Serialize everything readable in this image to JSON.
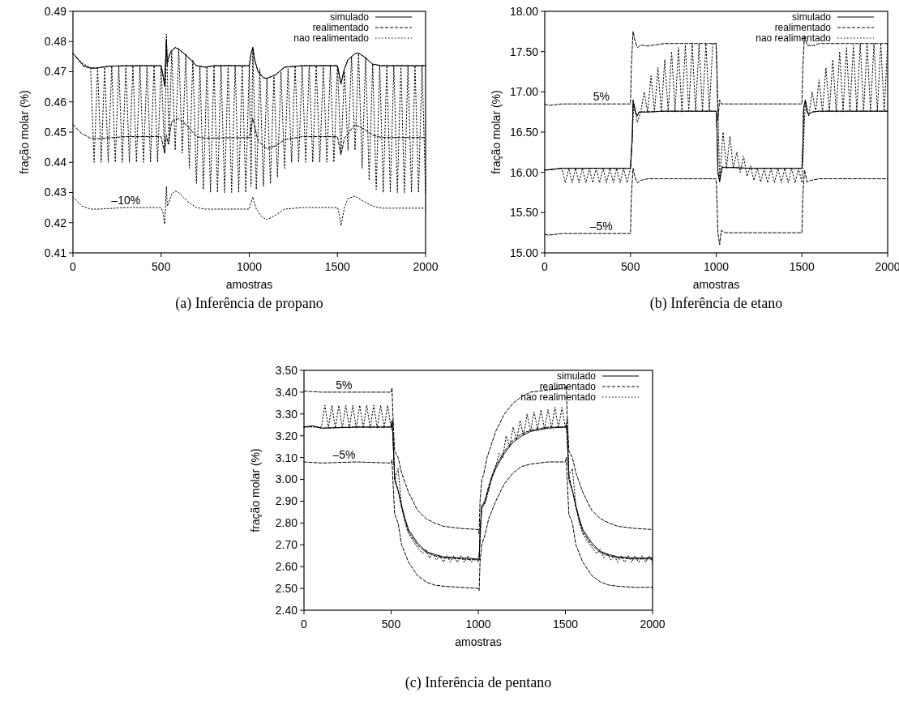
{
  "chart_data": [
    {
      "type": "line",
      "title": "(a) Inferência de propano",
      "xlabel": "amostras",
      "ylabel": "fração molar (%)",
      "xlim": [
        0,
        2000
      ],
      "xticks": [
        0,
        500,
        1000,
        1500,
        2000
      ],
      "ylim": [
        0.41,
        0.49
      ],
      "yticks": [
        0.41,
        0.42,
        0.43,
        0.44,
        0.45,
        0.46,
        0.47,
        0.48,
        0.49
      ],
      "legend": "top right",
      "grid": false,
      "annotations": [
        {
          "text": "–10%",
          "x": 300,
          "y": 0.425
        }
      ],
      "series": [
        {
          "name": "simulado",
          "color": "#000000",
          "line_style": "solid",
          "x": [
            0,
            10,
            30,
            60,
            100,
            130,
            200,
            300,
            400,
            500,
            510,
            520,
            530,
            535,
            540,
            550,
            560,
            580,
            600,
            650,
            700,
            750,
            800,
            900,
            1000,
            1010,
            1020,
            1030,
            1050,
            1080,
            1100,
            1150,
            1200,
            1300,
            1400,
            1500,
            1510,
            1520,
            1540,
            1560,
            1600,
            1620,
            1650,
            1700,
            1750,
            1800,
            1900,
            2000
          ],
          "values": [
            0.476,
            0.4755,
            0.474,
            0.472,
            0.4712,
            0.4712,
            0.4718,
            0.472,
            0.472,
            0.472,
            0.469,
            0.466,
            0.48,
            0.473,
            0.474,
            0.476,
            0.477,
            0.478,
            0.4775,
            0.475,
            0.472,
            0.4715,
            0.472,
            0.472,
            0.472,
            0.476,
            0.478,
            0.474,
            0.47,
            0.468,
            0.4678,
            0.469,
            0.4715,
            0.472,
            0.472,
            0.472,
            0.469,
            0.466,
            0.471,
            0.474,
            0.476,
            0.4762,
            0.475,
            0.4725,
            0.472,
            0.472,
            0.472,
            0.472
          ]
        },
        {
          "name": "realimentado",
          "color": "#000000",
          "line_style": "dashed",
          "x": [
            0,
            10,
            30,
            60,
            100,
            130,
            200,
            300,
            400,
            500,
            510,
            520,
            530,
            535,
            540,
            550,
            560,
            580,
            600,
            650,
            700,
            750,
            800,
            900,
            1000,
            1010,
            1020,
            1030,
            1050,
            1080,
            1100,
            1150,
            1200,
            1300,
            1400,
            1500,
            1510,
            1520,
            1540,
            1560,
            1600,
            1620,
            1650,
            1700,
            1750,
            1800,
            1900,
            2000
          ],
          "values": [
            0.476,
            0.4755,
            0.474,
            0.4718,
            0.4712,
            0.4712,
            0.4718,
            0.472,
            0.472,
            0.472,
            0.469,
            0.465,
            0.481,
            0.472,
            0.474,
            0.476,
            0.477,
            0.478,
            0.4775,
            0.475,
            0.472,
            0.4715,
            0.472,
            0.472,
            0.472,
            0.476,
            0.478,
            0.474,
            0.47,
            0.468,
            0.4678,
            0.469,
            0.4715,
            0.472,
            0.472,
            0.472,
            0.469,
            0.466,
            0.471,
            0.474,
            0.476,
            0.4762,
            0.475,
            0.4725,
            0.472,
            0.472,
            0.472,
            0.472
          ]
        },
        {
          "name": "nao realimentado",
          "color": "#000000",
          "line_style": "dotted",
          "x": [
            0,
            50,
            100,
            120,
            140,
            160,
            180,
            200,
            220,
            240,
            260,
            280,
            300,
            320,
            340,
            360,
            380,
            400,
            420,
            440,
            460,
            480,
            500,
            520,
            530,
            545,
            560,
            580,
            600,
            620,
            640,
            660,
            680,
            700,
            720,
            740,
            760,
            780,
            800,
            820,
            840,
            860,
            880,
            900,
            920,
            940,
            960,
            980,
            1000,
            1010,
            1020,
            1040,
            1060,
            1080,
            1100,
            1120,
            1140,
            1160,
            1180,
            1200,
            1220,
            1240,
            1260,
            1280,
            1300,
            1320,
            1340,
            1360,
            1380,
            1400,
            1420,
            1440,
            1460,
            1480,
            1500,
            1520,
            1540,
            1560,
            1580,
            1600,
            1620,
            1640,
            1660,
            1680,
            1700,
            1720,
            1740,
            1760,
            1780,
            1800,
            1820,
            1840,
            1860,
            1880,
            1900,
            1920,
            1940,
            1960,
            1980,
            2000
          ],
          "values": [
            0.476,
            0.473,
            0.4712,
            0.44,
            0.4712,
            0.44,
            0.4715,
            0.44,
            0.472,
            0.44,
            0.472,
            0.44,
            0.472,
            0.44,
            0.472,
            0.44,
            0.472,
            0.44,
            0.472,
            0.44,
            0.472,
            0.44,
            0.472,
            0.443,
            0.4825,
            0.446,
            0.477,
            0.444,
            0.4775,
            0.443,
            0.476,
            0.438,
            0.474,
            0.433,
            0.472,
            0.431,
            0.4718,
            0.43,
            0.472,
            0.43,
            0.472,
            0.43,
            0.472,
            0.43,
            0.472,
            0.43,
            0.472,
            0.43,
            0.472,
            0.432,
            0.478,
            0.431,
            0.471,
            0.432,
            0.468,
            0.433,
            0.4685,
            0.435,
            0.47,
            0.438,
            0.471,
            0.44,
            0.472,
            0.44,
            0.472,
            0.44,
            0.472,
            0.44,
            0.472,
            0.44,
            0.472,
            0.44,
            0.472,
            0.44,
            0.472,
            0.443,
            0.47,
            0.444,
            0.475,
            0.444,
            0.476,
            0.438,
            0.475,
            0.434,
            0.4725,
            0.431,
            0.472,
            0.43,
            0.472,
            0.43,
            0.472,
            0.43,
            0.472,
            0.43,
            0.472,
            0.43,
            0.472,
            0.43,
            0.472,
            0.43
          ]
        },
        {
          "color": "#000000",
          "line_style": "dashed",
          "x": [
            0,
            50,
            100,
            130,
            300,
            500,
            520,
            530,
            540,
            560,
            600,
            650,
            700,
            750,
            1000,
            1020,
            1050,
            1100,
            1150,
            1200,
            1300,
            1500,
            1520,
            1540,
            1600,
            1650,
            1700,
            1750,
            2000
          ],
          "values": [
            0.4525,
            0.4495,
            0.448,
            0.4478,
            0.4485,
            0.4485,
            0.443,
            0.449,
            0.446,
            0.4535,
            0.4545,
            0.452,
            0.4485,
            0.448,
            0.4482,
            0.4545,
            0.447,
            0.4445,
            0.4455,
            0.4475,
            0.4485,
            0.4485,
            0.4425,
            0.448,
            0.4525,
            0.451,
            0.449,
            0.4482,
            0.4482
          ]
        },
        {
          "color": "#000000",
          "line_style": "dotted",
          "x": [
            0,
            50,
            100,
            150,
            300,
            500,
            510,
            520,
            530,
            535,
            540,
            560,
            580,
            600,
            650,
            700,
            750,
            1000,
            1020,
            1040,
            1070,
            1100,
            1150,
            1200,
            1300,
            1500,
            1510,
            1520,
            1540,
            1560,
            1600,
            1650,
            1700,
            1750,
            2000
          ],
          "values": [
            0.4285,
            0.4255,
            0.4245,
            0.4245,
            0.425,
            0.425,
            0.4235,
            0.4195,
            0.432,
            0.4255,
            0.426,
            0.4295,
            0.4305,
            0.43,
            0.427,
            0.425,
            0.4245,
            0.4245,
            0.4285,
            0.4245,
            0.422,
            0.421,
            0.4225,
            0.4245,
            0.425,
            0.425,
            0.423,
            0.419,
            0.425,
            0.428,
            0.4288,
            0.427,
            0.4255,
            0.4248,
            0.4248
          ]
        }
      ]
    },
    {
      "type": "line",
      "title": "(b) Inferência de etano",
      "xlabel": "amostras",
      "ylabel": "fração molar (%)",
      "xlim": [
        0,
        2000
      ],
      "xticks": [
        0,
        500,
        1000,
        1500,
        2000
      ],
      "ylim": [
        15,
        18
      ],
      "yticks": [
        {
          "value": 15,
          "label": "15.00"
        },
        {
          "value": 15.5,
          "label": "15.50"
        },
        {
          "value": 16,
          "label": "16.00"
        },
        {
          "value": 16.5,
          "label": "16.50"
        },
        {
          "value": 17,
          "label": "17.00"
        },
        {
          "value": 17.5,
          "label": "17.50"
        },
        {
          "value": 18,
          "label": "18.00"
        }
      ],
      "legend": "top right",
      "grid": false,
      "annotations": [
        {
          "text": "5%",
          "x": 330,
          "y": 16.85
        },
        {
          "text": "–5%",
          "x": 330,
          "y": 15.24
        }
      ],
      "series": [
        {
          "name": "simulado",
          "color": "#000000",
          "line_style": "solid",
          "x": [
            0,
            20,
            100,
            300,
            500,
            510,
            515,
            520,
            530,
            540,
            550,
            560,
            600,
            700,
            1000,
            1005,
            1010,
            1020,
            1025,
            1035,
            1050,
            1100,
            1200,
            1500,
            1505,
            1510,
            1520,
            1530,
            1540,
            1560,
            1600,
            2000
          ],
          "values": [
            16.03,
            16.03,
            16.05,
            16.05,
            16.05,
            16.4,
            16.9,
            16.85,
            16.75,
            16.7,
            16.75,
            16.75,
            16.75,
            16.76,
            16.76,
            16.5,
            16,
            15.88,
            15.95,
            16.07,
            16.06,
            16.06,
            16.05,
            16.05,
            16.3,
            16.8,
            16.9,
            16.75,
            16.72,
            16.75,
            16.76,
            16.76
          ]
        },
        {
          "name": "realimentado",
          "color": "#000000",
          "line_style": "dashed",
          "x": [
            0,
            20,
            100,
            300,
            500,
            510,
            515,
            520,
            530,
            540,
            550,
            560,
            600,
            700,
            1000,
            1005,
            1010,
            1020,
            1025,
            1035,
            1050,
            1100,
            1200,
            1500,
            1505,
            1510,
            1520,
            1530,
            1540,
            1560,
            1600,
            2000
          ],
          "values": [
            16.03,
            16.03,
            16.05,
            16.05,
            16.05,
            16.4,
            16.85,
            16.82,
            16.73,
            16.7,
            16.75,
            16.75,
            16.75,
            16.76,
            16.76,
            16.5,
            16,
            15.9,
            15.95,
            16.06,
            16.06,
            16.06,
            16.05,
            16.05,
            16.3,
            16.8,
            16.88,
            16.74,
            16.72,
            16.75,
            16.76,
            16.76
          ]
        },
        {
          "name": "nao realimentado",
          "color": "#000000",
          "line_style": "dotted",
          "x": [
            0,
            100,
            120,
            140,
            160,
            180,
            200,
            220,
            240,
            260,
            280,
            300,
            320,
            340,
            360,
            380,
            400,
            420,
            440,
            460,
            480,
            500,
            520,
            540,
            560,
            580,
            600,
            620,
            640,
            660,
            680,
            700,
            720,
            740,
            760,
            780,
            800,
            820,
            840,
            860,
            880,
            900,
            920,
            940,
            960,
            980,
            1000,
            1010,
            1020,
            1040,
            1060,
            1080,
            1100,
            1120,
            1140,
            1160,
            1180,
            1200,
            1220,
            1240,
            1260,
            1280,
            1300,
            1320,
            1340,
            1360,
            1380,
            1400,
            1420,
            1440,
            1460,
            1480,
            1500,
            1520,
            1540,
            1560,
            1580,
            1600,
            1620,
            1640,
            1660,
            1680,
            1700,
            1720,
            1740,
            1760,
            1780,
            1800,
            1820,
            1840,
            1860,
            1880,
            1900,
            1920,
            1940,
            1960,
            1980,
            2000
          ],
          "values": [
            16.03,
            16.05,
            15.87,
            16.05,
            15.87,
            16.05,
            15.87,
            16.05,
            15.87,
            16.05,
            15.87,
            16.05,
            15.87,
            16.05,
            15.87,
            16.05,
            15.87,
            16.05,
            15.87,
            16.05,
            15.87,
            16.05,
            16.85,
            16.62,
            16.75,
            17,
            16.75,
            17.2,
            16.75,
            17.3,
            16.75,
            17.4,
            16.75,
            17.5,
            16.75,
            17.55,
            16.75,
            17.58,
            16.76,
            17.6,
            16.76,
            17.6,
            16.76,
            17.6,
            16.76,
            17.6,
            17.6,
            16.8,
            15.9,
            16.5,
            16.05,
            16.45,
            16.05,
            16.25,
            16,
            16.2,
            15.95,
            16.08,
            15.9,
            16.05,
            15.88,
            16.05,
            15.87,
            16.05,
            15.87,
            16.05,
            15.87,
            16.05,
            15.87,
            16.05,
            15.87,
            16.05,
            15.87,
            16.9,
            16.7,
            17,
            16.75,
            17.15,
            16.75,
            17.3,
            16.75,
            17.4,
            16.75,
            17.5,
            16.75,
            17.55,
            16.76,
            17.58,
            16.76,
            17.6,
            16.76,
            17.6,
            16.76,
            17.6,
            16.76,
            17.6,
            16.76,
            17.6
          ]
        },
        {
          "color": "#000000",
          "line_style": "dashed",
          "x": [
            0,
            20,
            100,
            500,
            505,
            515,
            525,
            540,
            560,
            600,
            700,
            1000,
            1005,
            1010,
            1020,
            1030,
            1050,
            1100,
            1500,
            1505,
            1515,
            1530,
            1560,
            1600,
            2000
          ],
          "values": [
            16.85,
            16.83,
            16.85,
            16.85,
            17.3,
            17.75,
            17.65,
            17.55,
            17.58,
            17.57,
            17.6,
            17.6,
            17.2,
            16.65,
            16.9,
            16.85,
            16.85,
            16.85,
            16.85,
            17.3,
            17.7,
            17.58,
            17.57,
            17.6,
            17.6
          ]
        },
        {
          "color": "#000000",
          "line_style": "dashed",
          "x": [
            0,
            20,
            100,
            500,
            505,
            515,
            525,
            540,
            560,
            600,
            1000,
            1005,
            1010,
            1020,
            1030,
            1050,
            1100,
            1500,
            1505,
            1515,
            1530,
            1550,
            1600,
            2000
          ],
          "values": [
            15.23,
            15.22,
            15.24,
            15.24,
            15.7,
            16.05,
            15.95,
            15.87,
            15.9,
            15.92,
            15.92,
            15.6,
            15.25,
            15.1,
            15.28,
            15.25,
            15.25,
            15.25,
            15.7,
            16.03,
            15.88,
            15.9,
            15.92,
            15.92
          ]
        }
      ]
    },
    {
      "type": "line",
      "title": "(c) Inferência de pentano",
      "xlabel": "amostras",
      "ylabel": "fração molar (%)",
      "xlim": [
        0,
        2000
      ],
      "xticks": [
        0,
        500,
        1000,
        1500,
        2000
      ],
      "ylim": [
        2.4,
        3.5
      ],
      "yticks": [
        {
          "value": 2.4,
          "label": "2.40"
        },
        {
          "value": 2.5,
          "label": "2.50"
        },
        {
          "value": 2.6,
          "label": "2.60"
        },
        {
          "value": 2.7,
          "label": "2.70"
        },
        {
          "value": 2.8,
          "label": "2.80"
        },
        {
          "value": 2.9,
          "label": "2.90"
        },
        {
          "value": 3,
          "label": "3.00"
        },
        {
          "value": 3.1,
          "label": "3.10"
        },
        {
          "value": 3.2,
          "label": "3.20"
        },
        {
          "value": 3.3,
          "label": "3.30"
        },
        {
          "value": 3.4,
          "label": "3.40"
        },
        {
          "value": 3.5,
          "label": "3.50"
        }
      ],
      "legend": "top right",
      "grid": false,
      "annotations": [
        {
          "text": "5%",
          "x": 230,
          "y": 3.4
        },
        {
          "text": "–5%",
          "x": 230,
          "y": 3.08
        }
      ],
      "series": [
        {
          "name": "simulado",
          "color": "#000000",
          "line_style": "solid",
          "x": [
            0,
            50,
            100,
            300,
            500,
            505,
            510,
            520,
            530,
            540,
            560,
            580,
            600,
            650,
            700,
            750,
            800,
            900,
            1000,
            1005,
            1010,
            1020,
            1030,
            1040,
            1060,
            1080,
            1100,
            1150,
            1200,
            1250,
            1300,
            1400,
            1500,
            1505,
            1510,
            1520,
            1530,
            1540,
            1560,
            1580,
            1600,
            1650,
            1700,
            1750,
            1800,
            1900,
            2000
          ],
          "values": [
            3.24,
            3.245,
            3.235,
            3.24,
            3.24,
            3.27,
            3.2,
            3,
            2.97,
            2.95,
            2.88,
            2.82,
            2.77,
            2.71,
            2.67,
            2.655,
            2.645,
            2.64,
            2.635,
            2.63,
            2.75,
            2.87,
            2.88,
            2.9,
            2.96,
            3.01,
            3.05,
            3.12,
            3.17,
            3.2,
            3.22,
            3.235,
            3.24,
            3.25,
            3.2,
            3,
            2.97,
            2.95,
            2.88,
            2.82,
            2.77,
            2.71,
            2.67,
            2.655,
            2.645,
            2.64,
            2.64
          ]
        },
        {
          "name": "realimentado",
          "color": "#000000",
          "line_style": "dashed",
          "x": [
            0,
            50,
            100,
            300,
            500,
            505,
            510,
            520,
            530,
            540,
            560,
            580,
            600,
            650,
            700,
            750,
            800,
            900,
            1000,
            1005,
            1010,
            1020,
            1030,
            1040,
            1060,
            1080,
            1100,
            1150,
            1200,
            1250,
            1300,
            1400,
            1500,
            1505,
            1510,
            1520,
            1530,
            1540,
            1560,
            1580,
            1600,
            1650,
            1700,
            1750,
            1800,
            1900,
            2000
          ],
          "values": [
            3.24,
            3.245,
            3.235,
            3.24,
            3.24,
            3.26,
            3.2,
            3.02,
            2.98,
            2.95,
            2.87,
            2.81,
            2.76,
            2.7,
            2.665,
            2.65,
            2.64,
            2.635,
            2.63,
            2.63,
            2.76,
            2.88,
            2.89,
            2.91,
            2.97,
            3.02,
            3.06,
            3.13,
            3.18,
            3.21,
            3.225,
            3.24,
            3.24,
            3.25,
            3.2,
            3.02,
            2.98,
            2.95,
            2.87,
            2.81,
            2.76,
            2.7,
            2.665,
            2.65,
            2.64,
            2.635,
            2.635
          ]
        },
        {
          "name": "nao realimentado",
          "color": "#000000",
          "line_style": "dotted",
          "x": [
            0,
            100,
            120,
            140,
            160,
            180,
            200,
            220,
            240,
            260,
            280,
            300,
            320,
            340,
            360,
            380,
            400,
            420,
            440,
            460,
            480,
            500,
            510,
            520,
            540,
            560,
            580,
            600,
            640,
            680,
            700,
            720,
            740,
            760,
            780,
            800,
            820,
            840,
            860,
            880,
            900,
            920,
            940,
            960,
            980,
            1000,
            1010,
            1020,
            1040,
            1060,
            1080,
            1100,
            1120,
            1140,
            1160,
            1180,
            1200,
            1220,
            1240,
            1260,
            1280,
            1300,
            1320,
            1340,
            1360,
            1380,
            1400,
            1420,
            1440,
            1460,
            1480,
            1500,
            1510,
            1520,
            1540,
            1560,
            1580,
            1600,
            1640,
            1680,
            1700,
            1720,
            1740,
            1760,
            1780,
            1800,
            1820,
            1840,
            1860,
            1880,
            1900,
            1920,
            1940,
            1960,
            1980,
            2000
          ],
          "values": [
            3.24,
            3.24,
            3.34,
            3.235,
            3.34,
            3.235,
            3.34,
            3.235,
            3.34,
            3.235,
            3.34,
            3.235,
            3.34,
            3.235,
            3.34,
            3.235,
            3.34,
            3.235,
            3.34,
            3.235,
            3.34,
            3.235,
            3.27,
            3,
            3.05,
            2.88,
            2.8,
            2.75,
            2.7,
            2.66,
            2.68,
            2.64,
            2.66,
            2.63,
            2.65,
            2.62,
            2.65,
            2.62,
            2.65,
            2.62,
            2.65,
            2.62,
            2.65,
            2.62,
            2.64,
            2.62,
            2.7,
            2.88,
            2.89,
            2.95,
            3.02,
            3.06,
            3.12,
            3.1,
            3.2,
            3.15,
            3.24,
            3.18,
            3.27,
            3.2,
            3.3,
            3.22,
            3.31,
            3.23,
            3.32,
            3.23,
            3.32,
            3.235,
            3.33,
            3.235,
            3.33,
            3.235,
            3.28,
            3.02,
            3.05,
            2.88,
            2.8,
            2.75,
            2.7,
            2.66,
            2.68,
            2.64,
            2.66,
            2.63,
            2.65,
            2.62,
            2.65,
            2.62,
            2.65,
            2.62,
            2.65,
            2.62,
            2.65,
            2.62,
            2.65,
            2.62
          ]
        },
        {
          "color": "#000000",
          "line_style": "dashed",
          "x": [
            0,
            100,
            300,
            500,
            505,
            510,
            520,
            540,
            560,
            600,
            650,
            700,
            750,
            800,
            900,
            1000,
            1005,
            1010,
            1020,
            1030,
            1050,
            1100,
            1150,
            1200,
            1250,
            1300,
            1400,
            1500,
            1505,
            1510,
            1520,
            1540,
            1560,
            1600,
            1650,
            1700,
            1750,
            1800,
            1900,
            2000
          ],
          "values": [
            3.405,
            3.4,
            3.4,
            3.4,
            3.42,
            3.3,
            3.13,
            3.1,
            3.03,
            2.94,
            2.86,
            2.82,
            2.8,
            2.785,
            2.775,
            2.77,
            2.75,
            2.9,
            3,
            3.02,
            3.1,
            3.22,
            3.3,
            3.35,
            3.38,
            3.4,
            3.41,
            3.42,
            3.43,
            3.3,
            3.13,
            3.1,
            3.03,
            2.94,
            2.86,
            2.82,
            2.8,
            2.785,
            2.775,
            2.77
          ]
        },
        {
          "color": "#000000",
          "line_style": "dashed",
          "x": [
            0,
            100,
            300,
            500,
            505,
            510,
            520,
            540,
            560,
            600,
            650,
            700,
            750,
            800,
            900,
            1000,
            1005,
            1010,
            1020,
            1040,
            1060,
            1100,
            1150,
            1200,
            1250,
            1300,
            1400,
            1500,
            1505,
            1510,
            1520,
            1540,
            1560,
            1600,
            1650,
            1700,
            1750,
            1800,
            1900,
            2000
          ],
          "values": [
            3.08,
            3.075,
            3.08,
            3.075,
            3.09,
            3,
            2.84,
            2.8,
            2.7,
            2.62,
            2.56,
            2.53,
            2.515,
            2.51,
            2.505,
            2.5,
            2.49,
            2.62,
            2.7,
            2.75,
            2.82,
            2.9,
            2.98,
            3.03,
            3.06,
            3.07,
            3.08,
            3.08,
            3.1,
            3,
            2.84,
            2.8,
            2.7,
            2.62,
            2.56,
            2.53,
            2.515,
            2.51,
            2.505,
            2.505
          ]
        }
      ]
    }
  ]
}
